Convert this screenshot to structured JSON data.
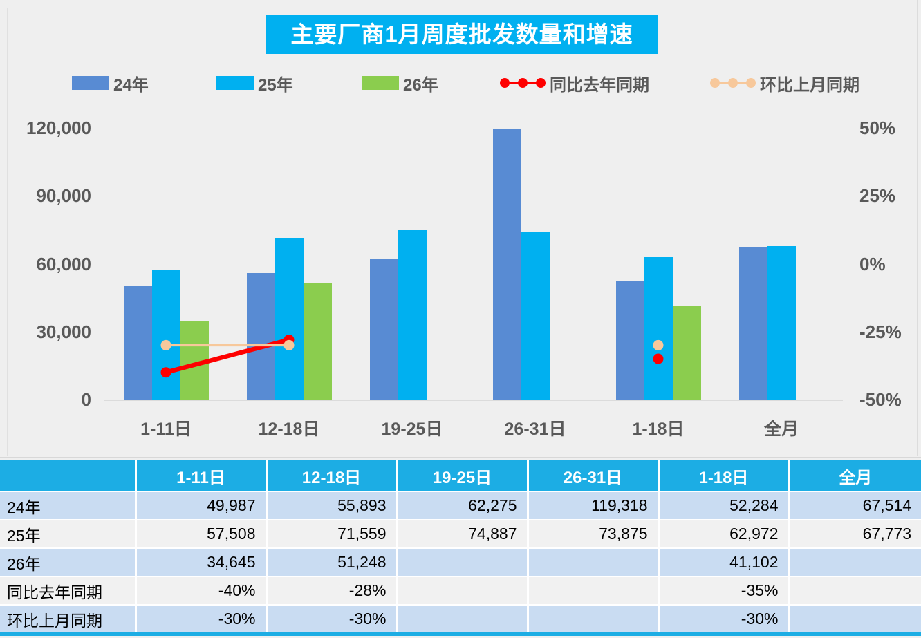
{
  "title": "主要厂商1月周度批发数量和增速",
  "colors": {
    "title_bg": "#00B0F0",
    "header_bg": "#1CADE4",
    "row_alt": "#C9DCF2",
    "row_plain": "#F1F1F1",
    "axis_text": "#595959",
    "page_bg": "#EFEFEF",
    "bar_24": "#588BD3",
    "bar_25": "#00B0F0",
    "bar_26": "#8BCD4E",
    "line_yoy": "#FE0000",
    "line_mom": "#F7C89B"
  },
  "legend": [
    {
      "label": "24年",
      "type": "swatch",
      "color": "#588BD3"
    },
    {
      "label": "25年",
      "type": "swatch",
      "color": "#00B0F0"
    },
    {
      "label": "26年",
      "type": "swatch",
      "color": "#8BCD4E"
    },
    {
      "label": "同比去年同期",
      "type": "line",
      "color": "#FE0000"
    },
    {
      "label": "环比上月同期",
      "type": "line",
      "color": "#F7C89B"
    }
  ],
  "chart_data": {
    "type": "bar",
    "categories": [
      "1-11日",
      "12-18日",
      "19-25日",
      "26-31日",
      "1-18日",
      "全月"
    ],
    "series": [
      {
        "name": "24年",
        "type": "bar",
        "color": "#588BD3",
        "values": [
          49987,
          55893,
          62275,
          119318,
          52284,
          67514
        ]
      },
      {
        "name": "25年",
        "type": "bar",
        "color": "#00B0F0",
        "values": [
          57508,
          71559,
          74887,
          73875,
          62972,
          67773
        ]
      },
      {
        "name": "26年",
        "type": "bar",
        "color": "#8BCD4E",
        "values": [
          34645,
          51248,
          null,
          null,
          41102,
          null
        ]
      },
      {
        "name": "同比去年同期",
        "type": "line",
        "axis": "right",
        "color": "#FE0000",
        "values": [
          -40,
          -28,
          null,
          null,
          -35,
          null
        ]
      },
      {
        "name": "环比上月同期",
        "type": "line",
        "axis": "right",
        "color": "#F7C89B",
        "values": [
          -30,
          -30,
          null,
          null,
          -30,
          null
        ]
      }
    ],
    "left_axis": {
      "ticks": [
        "120,000",
        "90,000",
        "60,000",
        "30,000",
        "0"
      ],
      "min": 0,
      "max": 120000
    },
    "right_axis": {
      "ticks": [
        "50%",
        "25%",
        "0%",
        "-25%",
        "-50%"
      ],
      "min": -50,
      "max": 50
    },
    "grid": false,
    "legend_position": "top"
  },
  "table": {
    "header": [
      "",
      "1-11日",
      "12-18日",
      "19-25日",
      "26-31日",
      "1-18日",
      "全月"
    ],
    "rows": [
      {
        "label": "24年",
        "values": [
          "49,987",
          "55,893",
          "62,275",
          "119,318",
          "52,284",
          "67,514"
        ]
      },
      {
        "label": "25年",
        "values": [
          "57,508",
          "71,559",
          "74,887",
          "73,875",
          "62,972",
          "67,773"
        ]
      },
      {
        "label": "26年",
        "values": [
          "34,645",
          "51,248",
          "",
          "",
          "41,102",
          ""
        ]
      },
      {
        "label": "同比去年同期",
        "values": [
          "-40%",
          "-28%",
          "",
          "",
          "-35%",
          ""
        ]
      },
      {
        "label": "环比上月同期",
        "values": [
          "-30%",
          "-30%",
          "",
          "",
          "-30%",
          ""
        ]
      }
    ]
  }
}
